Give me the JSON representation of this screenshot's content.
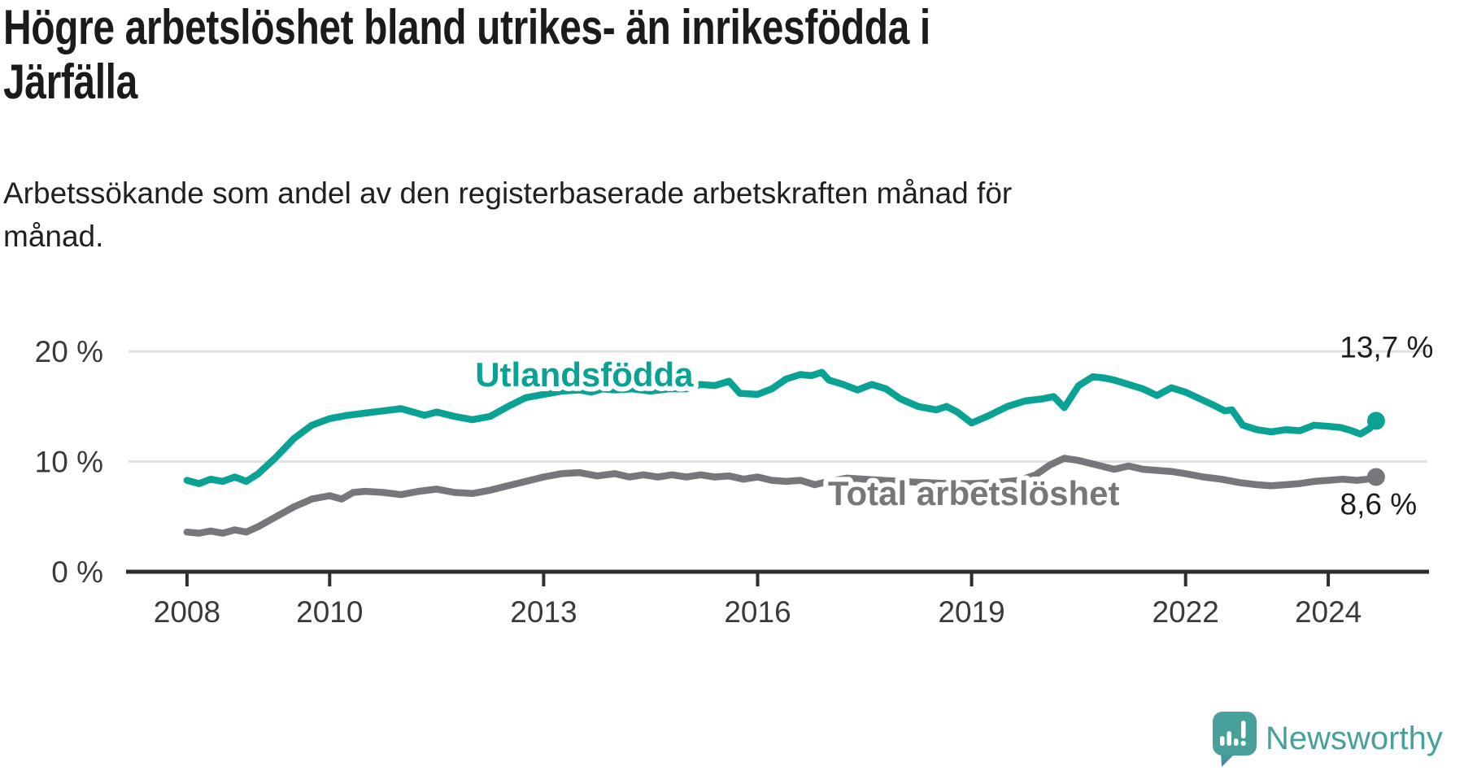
{
  "title": "Högre arbetslöshet bland utrikes- än inrikesfödda i\nJärfälla",
  "subtitle": "Arbetssökande som andel av den registerbaserade arbetskraften månad för\nmånad.",
  "branding": {
    "logo_text": "Newsworthy",
    "logo_icon": "newsworthy-speech-bubble-chart-icon"
  },
  "colors": {
    "accent_teal": "#0aa295",
    "series_gray": "#77767b",
    "title_text": "#1b1b1b",
    "axis_text": "#3a3a3a",
    "gridline": "#e1e1e1",
    "axis_line": "#2e2e2e",
    "background": "#ffffff",
    "logo_teal": "#48a09a"
  },
  "chart_data": {
    "type": "line",
    "title": "Högre arbetslöshet bland utrikes- än inrikesfödda i Järfälla",
    "subtitle": "Arbetssökande som andel av den registerbaserade arbetskraften månad för månad.",
    "xlabel": "",
    "ylabel": "",
    "grid": "horizontal-only",
    "legend_position": "inline-labels",
    "xlim": [
      2007.18,
      2025.39
    ],
    "ylim": [
      0,
      22
    ],
    "x_axis": {
      "ticks": [
        2008,
        2010,
        2013,
        2016,
        2019,
        2022,
        2024
      ],
      "tick_labels": [
        "2008",
        "2010",
        "2013",
        "2016",
        "2019",
        "2022",
        "2024"
      ]
    },
    "y_axis": {
      "ticks": [
        0,
        10,
        20
      ],
      "tick_labels": [
        "0 %",
        "10 %",
        "20 %"
      ]
    },
    "series": [
      {
        "name": "Utlandsfödda",
        "color": "#0aa295",
        "end_label": "13,7 %",
        "end_value": 13.7,
        "label_pos": [
          2013.57,
          17.86
        ],
        "end_label_offset": [
          13,
          -78
        ],
        "points": [
          [
            2008.0,
            8.3
          ],
          [
            2008.17,
            8.0
          ],
          [
            2008.33,
            8.4
          ],
          [
            2008.5,
            8.2
          ],
          [
            2008.67,
            8.6
          ],
          [
            2008.83,
            8.2
          ],
          [
            2009.0,
            8.9
          ],
          [
            2009.25,
            10.4
          ],
          [
            2009.5,
            12.1
          ],
          [
            2009.75,
            13.3
          ],
          [
            2010.0,
            13.9
          ],
          [
            2010.25,
            14.2
          ],
          [
            2010.5,
            14.4
          ],
          [
            2010.75,
            14.6
          ],
          [
            2011.0,
            14.8
          ],
          [
            2011.17,
            14.5
          ],
          [
            2011.33,
            14.2
          ],
          [
            2011.5,
            14.5
          ],
          [
            2011.75,
            14.1
          ],
          [
            2012.0,
            13.8
          ],
          [
            2012.25,
            14.1
          ],
          [
            2012.5,
            15.0
          ],
          [
            2012.75,
            15.8
          ],
          [
            2013.0,
            16.1
          ],
          [
            2013.25,
            16.4
          ],
          [
            2013.5,
            16.5
          ],
          [
            2013.67,
            16.3
          ],
          [
            2013.83,
            16.6
          ],
          [
            2014.0,
            16.5
          ],
          [
            2014.25,
            16.6
          ],
          [
            2014.5,
            16.4
          ],
          [
            2014.75,
            16.6
          ],
          [
            2015.0,
            16.6
          ],
          [
            2015.2,
            17.0
          ],
          [
            2015.4,
            16.9
          ],
          [
            2015.6,
            17.3
          ],
          [
            2015.75,
            16.2
          ],
          [
            2016.0,
            16.1
          ],
          [
            2016.2,
            16.6
          ],
          [
            2016.4,
            17.5
          ],
          [
            2016.6,
            17.9
          ],
          [
            2016.75,
            17.8
          ],
          [
            2016.9,
            18.1
          ],
          [
            2017.0,
            17.4
          ],
          [
            2017.2,
            17.0
          ],
          [
            2017.4,
            16.5
          ],
          [
            2017.6,
            17.0
          ],
          [
            2017.8,
            16.6
          ],
          [
            2018.0,
            15.7
          ],
          [
            2018.25,
            15.0
          ],
          [
            2018.5,
            14.7
          ],
          [
            2018.65,
            15.0
          ],
          [
            2018.8,
            14.5
          ],
          [
            2019.0,
            13.5
          ],
          [
            2019.25,
            14.2
          ],
          [
            2019.5,
            15.0
          ],
          [
            2019.75,
            15.5
          ],
          [
            2020.0,
            15.7
          ],
          [
            2020.15,
            15.9
          ],
          [
            2020.3,
            14.9
          ],
          [
            2020.5,
            16.9
          ],
          [
            2020.7,
            17.7
          ],
          [
            2020.85,
            17.6
          ],
          [
            2021.0,
            17.4
          ],
          [
            2021.2,
            17.0
          ],
          [
            2021.4,
            16.6
          ],
          [
            2021.6,
            16.0
          ],
          [
            2021.8,
            16.7
          ],
          [
            2022.0,
            16.3
          ],
          [
            2022.2,
            15.7
          ],
          [
            2022.4,
            15.1
          ],
          [
            2022.55,
            14.6
          ],
          [
            2022.65,
            14.7
          ],
          [
            2022.8,
            13.3
          ],
          [
            2023.0,
            12.9
          ],
          [
            2023.2,
            12.7
          ],
          [
            2023.4,
            12.9
          ],
          [
            2023.6,
            12.8
          ],
          [
            2023.8,
            13.3
          ],
          [
            2024.0,
            13.2
          ],
          [
            2024.17,
            13.1
          ],
          [
            2024.33,
            12.8
          ],
          [
            2024.45,
            12.5
          ],
          [
            2024.58,
            13.0
          ],
          [
            2024.67,
            13.7
          ]
        ]
      },
      {
        "name": "Total arbetslöshet",
        "color": "#77767b",
        "end_label": "8,6 %",
        "end_value": 8.6,
        "label_pos": [
          2019.03,
          7.08
        ],
        "end_label_offset": [
          3,
          46
        ],
        "points": [
          [
            2008.0,
            3.6
          ],
          [
            2008.17,
            3.5
          ],
          [
            2008.33,
            3.7
          ],
          [
            2008.5,
            3.5
          ],
          [
            2008.67,
            3.8
          ],
          [
            2008.83,
            3.6
          ],
          [
            2009.0,
            4.1
          ],
          [
            2009.25,
            5.0
          ],
          [
            2009.5,
            5.9
          ],
          [
            2009.75,
            6.6
          ],
          [
            2010.0,
            6.9
          ],
          [
            2010.17,
            6.6
          ],
          [
            2010.33,
            7.2
          ],
          [
            2010.5,
            7.3
          ],
          [
            2010.75,
            7.2
          ],
          [
            2011.0,
            7.0
          ],
          [
            2011.25,
            7.3
          ],
          [
            2011.5,
            7.5
          ],
          [
            2011.75,
            7.2
          ],
          [
            2012.0,
            7.1
          ],
          [
            2012.25,
            7.4
          ],
          [
            2012.5,
            7.8
          ],
          [
            2012.75,
            8.2
          ],
          [
            2013.0,
            8.6
          ],
          [
            2013.25,
            8.9
          ],
          [
            2013.5,
            9.0
          ],
          [
            2013.75,
            8.7
          ],
          [
            2014.0,
            8.9
          ],
          [
            2014.2,
            8.6
          ],
          [
            2014.4,
            8.8
          ],
          [
            2014.6,
            8.6
          ],
          [
            2014.8,
            8.8
          ],
          [
            2015.0,
            8.6
          ],
          [
            2015.2,
            8.8
          ],
          [
            2015.4,
            8.6
          ],
          [
            2015.6,
            8.7
          ],
          [
            2015.8,
            8.4
          ],
          [
            2016.0,
            8.6
          ],
          [
            2016.2,
            8.3
          ],
          [
            2016.4,
            8.2
          ],
          [
            2016.6,
            8.3
          ],
          [
            2016.8,
            7.9
          ],
          [
            2017.0,
            8.2
          ],
          [
            2017.25,
            8.5
          ],
          [
            2017.5,
            8.4
          ],
          [
            2017.75,
            8.3
          ],
          [
            2018.0,
            8.2
          ],
          [
            2018.33,
            8.1
          ],
          [
            2018.67,
            8.0
          ],
          [
            2019.0,
            8.0
          ],
          [
            2019.33,
            8.1
          ],
          [
            2019.67,
            8.3
          ],
          [
            2019.9,
            8.8
          ],
          [
            2020.1,
            9.7
          ],
          [
            2020.3,
            10.3
          ],
          [
            2020.5,
            10.1
          ],
          [
            2020.75,
            9.7
          ],
          [
            2021.0,
            9.3
          ],
          [
            2021.2,
            9.6
          ],
          [
            2021.4,
            9.3
          ],
          [
            2021.6,
            9.2
          ],
          [
            2021.8,
            9.1
          ],
          [
            2022.0,
            8.9
          ],
          [
            2022.25,
            8.6
          ],
          [
            2022.5,
            8.4
          ],
          [
            2022.75,
            8.1
          ],
          [
            2023.0,
            7.9
          ],
          [
            2023.2,
            7.8
          ],
          [
            2023.4,
            7.9
          ],
          [
            2023.6,
            8.0
          ],
          [
            2023.8,
            8.2
          ],
          [
            2024.0,
            8.3
          ],
          [
            2024.2,
            8.4
          ],
          [
            2024.4,
            8.3
          ],
          [
            2024.55,
            8.4
          ],
          [
            2024.67,
            8.6
          ]
        ]
      }
    ]
  }
}
